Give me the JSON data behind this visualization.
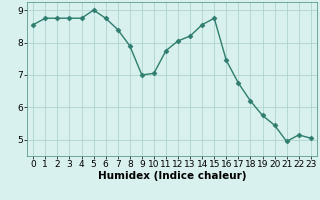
{
  "x": [
    0,
    1,
    2,
    3,
    4,
    5,
    6,
    7,
    8,
    9,
    10,
    11,
    12,
    13,
    14,
    15,
    16,
    17,
    18,
    19,
    20,
    21,
    22,
    23
  ],
  "y": [
    8.55,
    8.75,
    8.75,
    8.75,
    8.75,
    9.0,
    8.75,
    8.4,
    7.9,
    7.0,
    7.05,
    7.75,
    8.05,
    8.2,
    8.55,
    8.75,
    7.45,
    6.75,
    6.2,
    5.75,
    5.45,
    4.95,
    5.15,
    5.05
  ],
  "line_color": "#2e7d6e",
  "marker": "D",
  "marker_size": 2.5,
  "bg_color": "#d8f0ee",
  "grid_color": "#b0d4d0",
  "xlabel": "Humidex (Indice chaleur)",
  "xlim": [
    -0.5,
    23.5
  ],
  "ylim": [
    4.5,
    9.25
  ],
  "yticks": [
    5,
    6,
    7,
    8,
    9
  ],
  "xticks": [
    0,
    1,
    2,
    3,
    4,
    5,
    6,
    7,
    8,
    9,
    10,
    11,
    12,
    13,
    14,
    15,
    16,
    17,
    18,
    19,
    20,
    21,
    22,
    23
  ],
  "tick_fontsize": 6.5,
  "xlabel_fontsize": 7.5
}
